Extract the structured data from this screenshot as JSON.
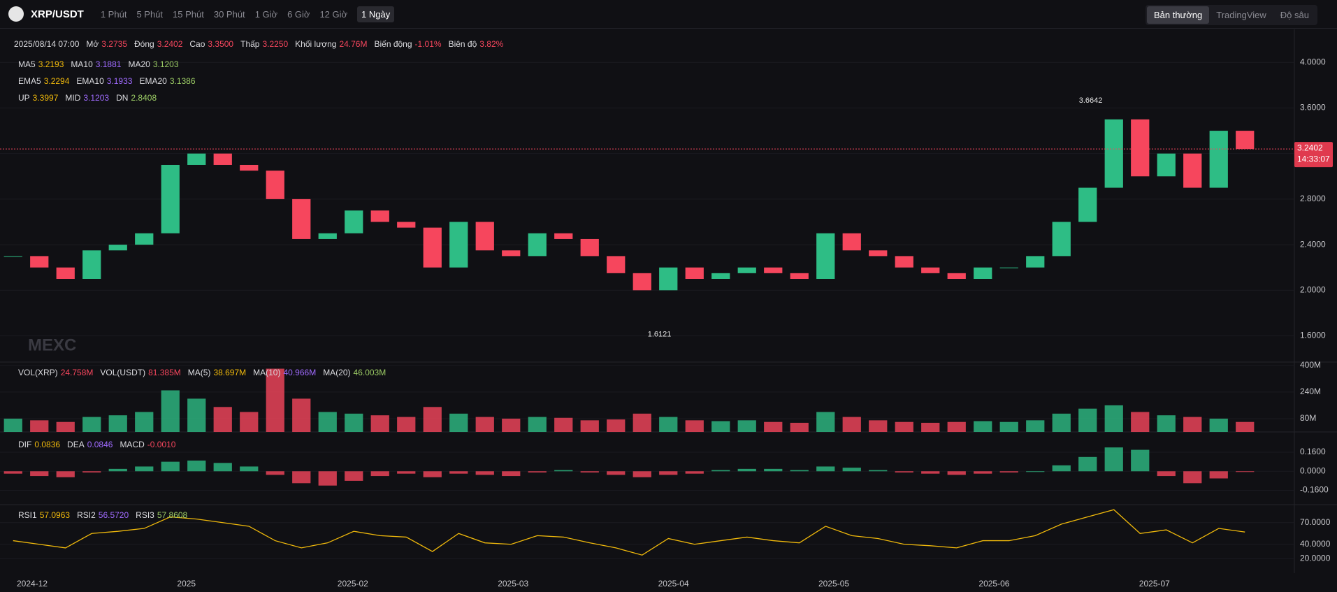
{
  "header": {
    "symbol": "XRP/USDT",
    "intervals": [
      "1 Phút",
      "5 Phút",
      "15 Phút",
      "30 Phút",
      "1 Giờ",
      "6 Giờ",
      "12 Giờ",
      "1 Ngày"
    ],
    "views": [
      "Bản thường",
      "TradingView",
      "Độ sâu"
    ]
  },
  "info": {
    "date": "2025/08/14 07:00",
    "value_color": "#f6465d",
    "fields": [
      {
        "name": "Mở",
        "value": "3.2735"
      },
      {
        "name": "Đóng",
        "value": "3.2402"
      },
      {
        "name": "Cao",
        "value": "3.3500"
      },
      {
        "name": "Thấp",
        "value": "3.2250"
      },
      {
        "name": "Khối lượng",
        "value": "24.76M"
      },
      {
        "name": "Biến động",
        "value": "-1.01%"
      },
      {
        "name": "Biên độ",
        "value": "3.82%"
      }
    ]
  },
  "legends": {
    "ma": [
      {
        "name": "MA5",
        "value": "3.2193",
        "color": "#f0b90b"
      },
      {
        "name": "MA10",
        "value": "3.1881",
        "color": "#a06bff"
      },
      {
        "name": "MA20",
        "value": "3.1203",
        "color": "#9ccc65"
      }
    ],
    "ema": [
      {
        "name": "EMA5",
        "value": "3.2294",
        "color": "#f0b90b"
      },
      {
        "name": "EMA10",
        "value": "3.1933",
        "color": "#a06bff"
      },
      {
        "name": "EMA20",
        "value": "3.1386",
        "color": "#9ccc65"
      }
    ],
    "boll": [
      {
        "name": "UP",
        "value": "3.3997",
        "color": "#f0b90b"
      },
      {
        "name": "MID",
        "value": "3.1203",
        "color": "#a06bff"
      },
      {
        "name": "DN",
        "value": "2.8408",
        "color": "#9ccc65"
      }
    ],
    "vol": [
      {
        "name": "VOL(XRP)",
        "value": "24.758M",
        "color": "#f6465d"
      },
      {
        "name": "VOL(USDT)",
        "value": "81.385M",
        "color": "#f6465d"
      },
      {
        "name": "MA(5)",
        "value": "38.697M",
        "color": "#f0b90b"
      },
      {
        "name": "MA(10)",
        "value": "40.966M",
        "color": "#a06bff"
      },
      {
        "name": "MA(20)",
        "value": "46.003M",
        "color": "#9ccc65"
      }
    ],
    "macd": [
      {
        "name": "DIF",
        "value": "0.0836",
        "color": "#f0b90b"
      },
      {
        "name": "DEA",
        "value": "0.0846",
        "color": "#a06bff"
      },
      {
        "name": "MACD",
        "value": "-0.0010",
        "color": "#f6465d"
      }
    ],
    "rsi": [
      {
        "name": "RSI1",
        "value": "57.0963",
        "color": "#f0b90b"
      },
      {
        "name": "RSI2",
        "value": "56.5720",
        "color": "#a06bff"
      },
      {
        "name": "RSI3",
        "value": "57.8608",
        "color": "#9ccc65"
      }
    ]
  },
  "watermark": "MEXC",
  "chart_data": [
    {
      "type": "candlestick",
      "up_color": "#2ebd85",
      "down_color": "#f6465d",
      "closes": [
        2.3,
        2.2,
        2.1,
        2.35,
        2.4,
        2.5,
        3.1,
        3.2,
        3.1,
        3.05,
        2.8,
        2.45,
        2.5,
        2.7,
        2.6,
        2.55,
        2.2,
        2.6,
        2.35,
        2.3,
        2.5,
        2.45,
        2.3,
        2.15,
        2.0,
        2.2,
        2.1,
        2.15,
        2.2,
        2.15,
        2.1,
        2.5,
        2.35,
        2.3,
        2.2,
        2.15,
        2.1,
        2.2,
        2.2,
        2.3,
        2.6,
        2.9,
        3.5,
        3.0,
        3.2,
        2.9,
        3.4,
        3.24
      ],
      "ylim": [
        1.37,
        4.29
      ],
      "yticks": [
        {
          "value": 4.0,
          "label": "4.0000"
        },
        {
          "value": 3.6,
          "label": "3.6000"
        },
        {
          "value": 3.2,
          "label": "3.2000"
        },
        {
          "value": 2.8,
          "label": "2.8000"
        },
        {
          "value": 2.4,
          "label": "2.4000"
        },
        {
          "value": 2.0,
          "label": "2.0000"
        },
        {
          "value": 1.6,
          "label": "1.6000"
        }
      ],
      "last_price": {
        "value": 3.2402,
        "label": "3.2402"
      },
      "countdown": "14:33:07",
      "high": {
        "value": 3.6642,
        "label": "3.6642"
      },
      "low": {
        "value": 1.6121,
        "label": "1.6121"
      },
      "x_labels": [
        "2024-12",
        "2025",
        "2025-02",
        "2025-03",
        "2025-04",
        "2025-05",
        "2025-06",
        "2025-07"
      ]
    },
    {
      "type": "bar",
      "name": "VOL",
      "values": [
        80,
        70,
        60,
        90,
        100,
        120,
        250,
        200,
        150,
        120,
        380,
        200,
        120,
        110,
        100,
        90,
        150,
        110,
        90,
        80,
        90,
        85,
        70,
        75,
        110,
        90,
        70,
        65,
        70,
        60,
        55,
        120,
        90,
        70,
        60,
        55,
        60,
        65,
        60,
        70,
        110,
        140,
        160,
        120,
        100,
        90,
        80,
        60
      ],
      "ylim": [
        0,
        420
      ],
      "yticks": [
        {
          "value": 400,
          "label": "400M"
        },
        {
          "value": 240,
          "label": "240M"
        },
        {
          "value": 80,
          "label": "80M"
        }
      ]
    },
    {
      "type": "histogram",
      "name": "MACD",
      "values": [
        -0.02,
        -0.04,
        -0.05,
        -0.01,
        0.02,
        0.04,
        0.08,
        0.09,
        0.07,
        0.04,
        -0.03,
        -0.1,
        -0.12,
        -0.08,
        -0.04,
        -0.02,
        -0.05,
        -0.02,
        -0.03,
        -0.04,
        -0.01,
        0.01,
        -0.01,
        -0.03,
        -0.05,
        -0.03,
        -0.02,
        0.01,
        0.02,
        0.02,
        0.01,
        0.04,
        0.03,
        0.01,
        -0.01,
        -0.02,
        -0.03,
        -0.02,
        -0.01,
        0.0,
        0.05,
        0.12,
        0.2,
        0.18,
        -0.04,
        -0.1,
        -0.06,
        -0.001
      ],
      "ylim": [
        -0.28,
        0.33
      ],
      "yticks": [
        {
          "value": 0.16,
          "label": "0.1600"
        },
        {
          "value": 0,
          "label": "0.0000"
        },
        {
          "value": -0.16,
          "label": "-0.1600"
        }
      ]
    },
    {
      "type": "line",
      "name": "RSI1",
      "color": "#f0b90b",
      "values": [
        45,
        40,
        35,
        55,
        58,
        62,
        78,
        75,
        70,
        65,
        45,
        35,
        42,
        58,
        52,
        50,
        30,
        55,
        42,
        40,
        52,
        50,
        42,
        35,
        25,
        48,
        40,
        45,
        50,
        45,
        42,
        65,
        52,
        48,
        40,
        38,
        35,
        45,
        45,
        52,
        68,
        78,
        88,
        55,
        60,
        42,
        62,
        57
      ],
      "ylim": [
        0,
        95
      ],
      "yticks": [
        {
          "value": 70,
          "label": "70.0000"
        },
        {
          "value": 40,
          "label": "40.0000"
        },
        {
          "value": 20,
          "label": "20.0000"
        }
      ]
    }
  ]
}
